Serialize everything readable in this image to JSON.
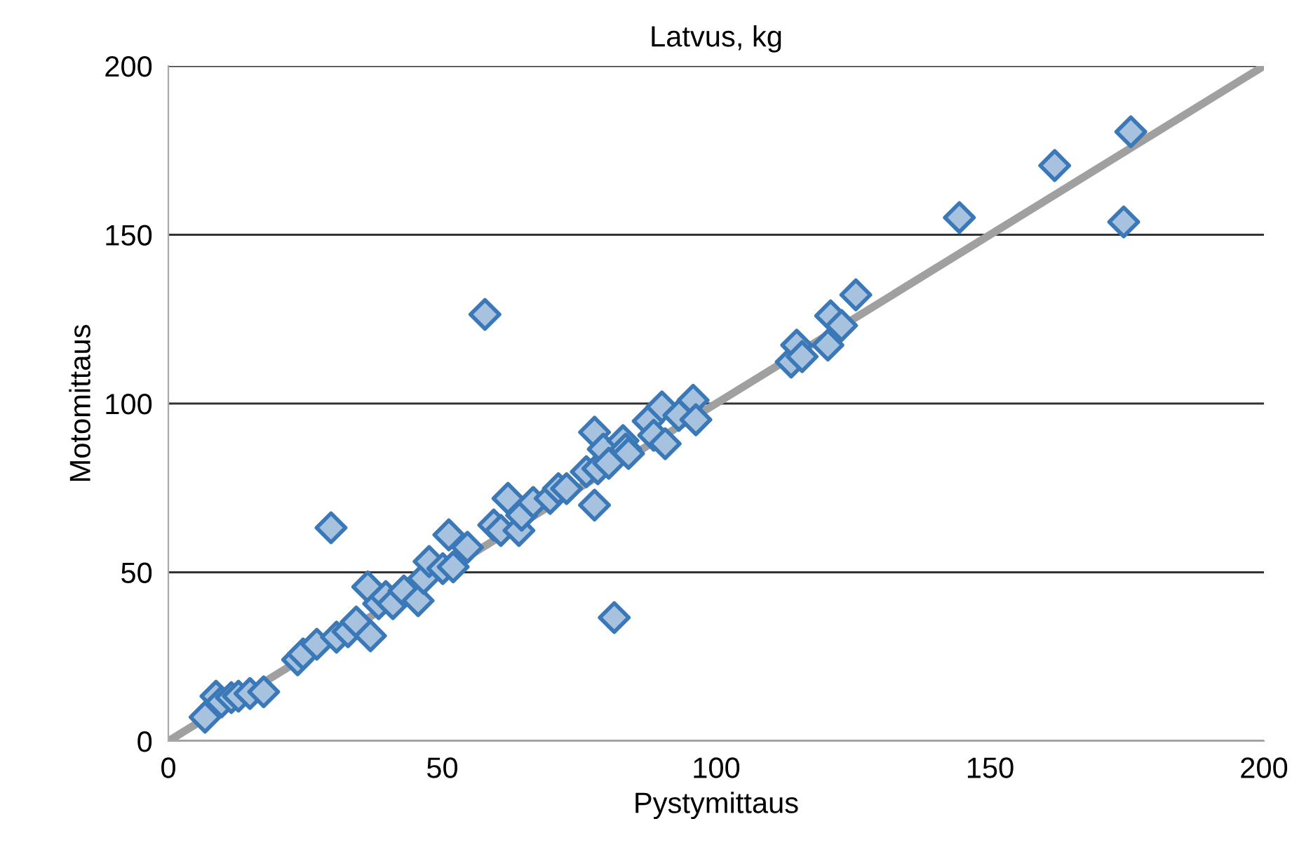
{
  "chart_data": {
    "type": "scatter",
    "title": "Latvus, kg",
    "xlabel": "Pystymittaus",
    "ylabel": "Motomittaus",
    "xlim": [
      0,
      200
    ],
    "ylim": [
      0,
      200
    ],
    "xticks": [
      0,
      50,
      100,
      150,
      200
    ],
    "yticks": [
      0,
      50,
      100,
      150,
      200
    ],
    "grid": "y",
    "marker": "diamond",
    "series": [
      {
        "type": "line",
        "color": "#a0a0a0",
        "x": [
          0,
          200
        ],
        "values": [
          0,
          200
        ],
        "marker": "none"
      },
      {
        "color": "#3a78b8",
        "x": [
          6.7,
          8.7,
          9.7,
          11.5,
          12.8,
          14.9,
          17.4,
          23.6,
          24.6,
          27.1,
          29.7,
          30.7,
          32.8,
          34.3,
          36.4,
          36.9,
          38.4,
          39.7,
          41,
          43,
          45.6,
          46.6,
          47.6,
          50.1,
          51.2,
          52,
          54.6,
          57.8,
          59.4,
          60.7,
          62,
          64,
          64.5,
          66.6,
          69.7,
          71.2,
          72.7,
          76.3,
          77.8,
          77.8,
          78.4,
          79.4,
          80.4,
          81.4,
          83,
          83.5,
          84,
          87.6,
          88.6,
          90.1,
          90.7,
          93.2,
          95.8,
          96.3,
          113.7,
          114.7,
          115.7,
          120.4,
          120.9,
          122.9,
          125.5,
          144.4,
          161.8,
          174.4,
          175.7
        ],
        "values": [
          7.1,
          13.3,
          11.6,
          12.9,
          13.3,
          14.1,
          14.6,
          24.1,
          25.8,
          28.7,
          63.2,
          30.8,
          32.4,
          35.3,
          45.7,
          31.2,
          40.7,
          42.8,
          40.7,
          44.5,
          41.6,
          48.2,
          53.2,
          51.1,
          61.1,
          51.6,
          57.4,
          126.4,
          64,
          62.4,
          71.9,
          62.4,
          66.9,
          70.7,
          71.9,
          74.8,
          74.8,
          79.8,
          91.5,
          69.9,
          80.7,
          86.5,
          82.3,
          36.6,
          89,
          86.5,
          85.2,
          94.8,
          90.6,
          99,
          88.1,
          96.5,
          101,
          95.2,
          112.3,
          117.3,
          113.9,
          117.3,
          126,
          123.1,
          132.2,
          155.1,
          170.5,
          153.8,
          180.5
        ]
      }
    ]
  }
}
